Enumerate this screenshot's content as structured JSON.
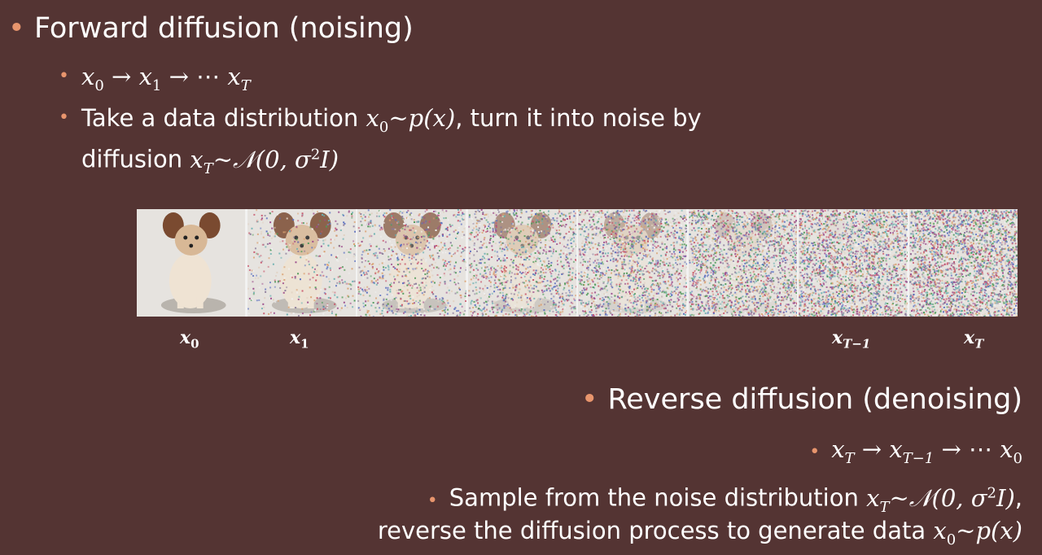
{
  "forward": {
    "bullet": "•",
    "title": "Forward diffusion (noising)",
    "chain": {
      "x": "x",
      "s0": "0",
      "arrow1": "→",
      "s1": "1",
      "arrow2": "→",
      "dots": "⋯",
      "sT": "T"
    },
    "desc_part1": "Take a data distribution ",
    "desc_part2": ", turn it into noise by",
    "desc_line2_part1": "diffusion ",
    "dist_data": "p(x)",
    "tilde": "~",
    "dist_noise_open": "𝒩(0, σ",
    "dist_noise_sup": "2",
    "dist_noise_close": "I)"
  },
  "image_labels": [
    {
      "sym": "x",
      "sub": "0"
    },
    {
      "sym": "x",
      "sub": "1"
    },
    {
      "sym": "x",
      "sub": "T−1"
    },
    {
      "sym": "x",
      "sub": "T"
    }
  ],
  "reverse": {
    "bullet": "•",
    "title": "Reverse diffusion (denoising)",
    "chain": {
      "sT": "T",
      "arrow1": "→",
      "sT1": "T−1",
      "arrow2": "→",
      "dots": "⋯",
      "s0": "0"
    },
    "desc_part1": "Sample from the noise distribution ",
    "desc_part2": ",",
    "desc_line2_part1": "reverse the diffusion process to generate data "
  },
  "colors": {
    "background": "#543433",
    "bullet": "#e8956d",
    "text": "#ffffff"
  }
}
